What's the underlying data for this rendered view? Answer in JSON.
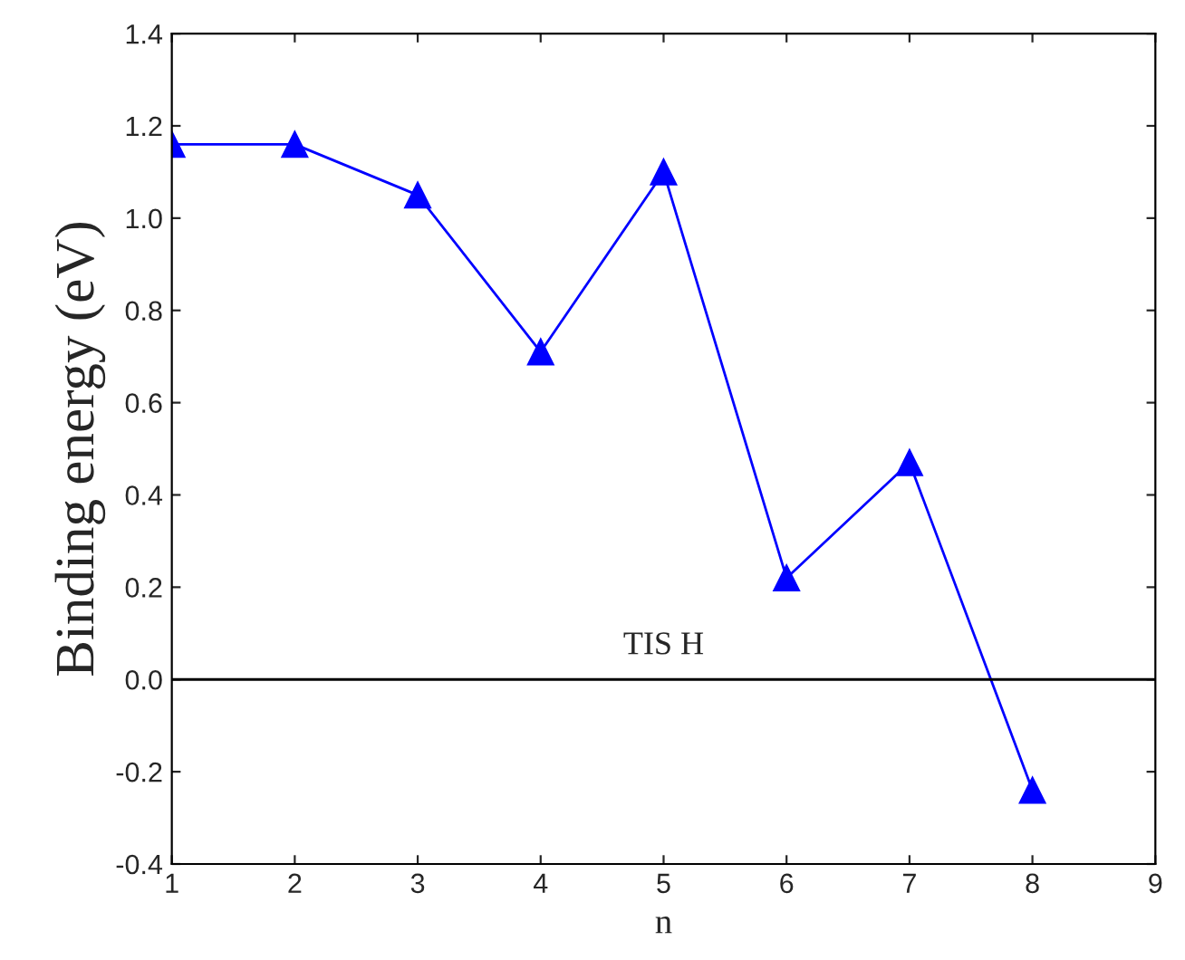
{
  "chart_data": {
    "type": "line",
    "xlabel": "n",
    "ylabel": "Binding energy (eV)",
    "x": [
      1,
      2,
      3,
      4,
      5,
      6,
      7,
      8
    ],
    "series": [
      {
        "color": "#0000ff",
        "values": [
          1.16,
          1.16,
          1.05,
          0.71,
          1.1,
          0.22,
          0.47,
          -0.24
        ]
      }
    ],
    "xlim": [
      1,
      9
    ],
    "xticks": [
      1,
      2,
      3,
      4,
      5,
      6,
      7,
      8,
      9
    ],
    "ylim": [
      -0.4,
      1.4
    ],
    "yticks": [
      {
        "value": -0.4,
        "label": "-0.4"
      },
      {
        "value": -0.2,
        "label": "-0.2"
      },
      {
        "value": 0,
        "label": "0.0"
      },
      {
        "value": 0.2,
        "label": "0.2"
      },
      {
        "value": 0.4,
        "label": "0.4"
      },
      {
        "value": 0.6,
        "label": "0.6"
      },
      {
        "value": 0.8,
        "label": "0.8"
      },
      {
        "value": 1.0,
        "label": "1.0"
      },
      {
        "value": 1.2,
        "label": "1.2"
      },
      {
        "value": 1.4,
        "label": "1.4"
      }
    ],
    "ref_lines": [
      {
        "axis": "y",
        "value": 0,
        "label": "TIS H",
        "color": "#000000"
      }
    ],
    "marker": "triangle",
    "line_style": "solid",
    "grid": false,
    "legend": false
  }
}
